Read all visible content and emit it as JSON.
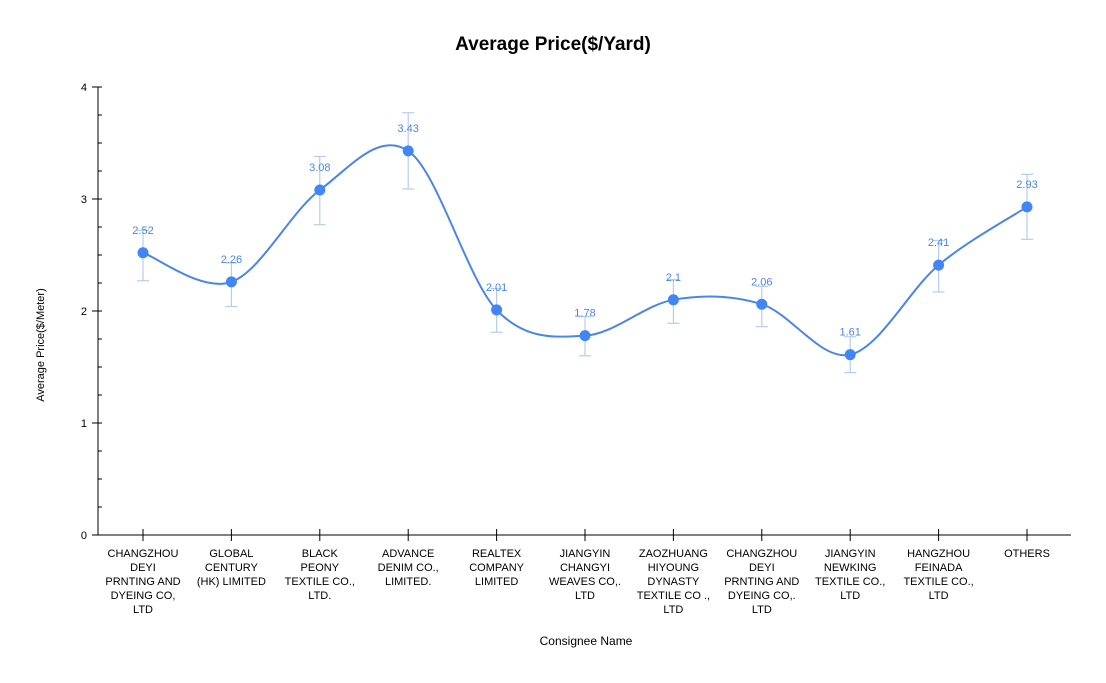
{
  "chart_data": {
    "type": "line",
    "title": "Average Price($/Yard)",
    "xlabel": "Consignee Name",
    "ylabel": "Average Price($/Meter)",
    "categories": [
      [
        "CHANGZHOU",
        "DEYI",
        "PRNTING AND",
        "DYEING CO,",
        "LTD"
      ],
      [
        "GLOBAL",
        "CENTURY",
        "(HK) LIMITED"
      ],
      [
        "BLACK",
        "PEONY",
        "TEXTILE CO.,",
        "LTD."
      ],
      [
        "ADVANCE",
        "DENIM CO.,",
        "LIMITED."
      ],
      [
        "REALTEX",
        "COMPANY",
        "LIMITED"
      ],
      [
        "JIANGYIN",
        "CHANGYI",
        "WEAVES CO,.",
        "LTD"
      ],
      [
        "ZAOZHUANG",
        "HIYOUNG",
        "DYNASTY",
        "TEXTILE CO .,",
        "LTD"
      ],
      [
        "CHANGZHOU",
        "DEYI",
        "PRNTING AND",
        "DYEING CO,.",
        "LTD"
      ],
      [
        "JIANGYIN",
        "NEWKING",
        "TEXTILE CO.,",
        "LTD"
      ],
      [
        "HANGZHOU",
        "FEINADA",
        "TEXTILE CO.,",
        "LTD"
      ],
      [
        "OTHERS"
      ]
    ],
    "values": [
      2.52,
      2.26,
      3.08,
      3.43,
      2.01,
      1.78,
      2.1,
      2.06,
      1.61,
      2.41,
      2.93
    ],
    "value_labels": [
      "2.52",
      "2.26",
      "3.08",
      "3.43",
      "2.01",
      "1.78",
      "2.1",
      "2.06",
      "1.61",
      "2.41",
      "2.93"
    ],
    "error_low": [
      2.27,
      2.04,
      2.77,
      3.09,
      1.81,
      1.6,
      1.89,
      1.86,
      1.45,
      2.17,
      2.64
    ],
    "error_high": [
      2.72,
      2.43,
      3.38,
      3.77,
      2.2,
      1.95,
      2.28,
      2.22,
      1.77,
      2.63,
      3.22
    ],
    "ylim": [
      0,
      4
    ],
    "yticks": [
      0,
      1,
      2,
      3,
      4
    ],
    "grid": false,
    "legend": "none",
    "colors": {
      "line": "#4a86e8",
      "point": "#4285f4",
      "error_bar": "#b4cdf2",
      "label": "#4a86e8",
      "axis": "#000000"
    }
  }
}
